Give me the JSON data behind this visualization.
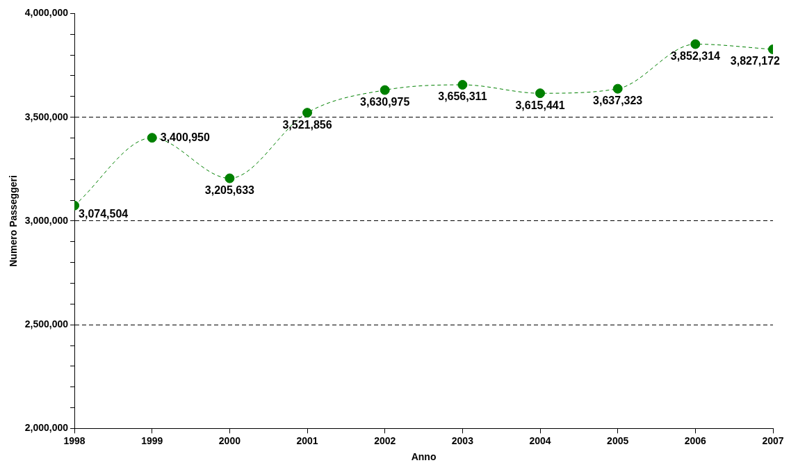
{
  "chart_data": {
    "type": "line",
    "xlabel": "Anno",
    "ylabel": "Numero Passeggeri",
    "x": [
      1998,
      1999,
      2000,
      2001,
      2002,
      2003,
      2004,
      2005,
      2006,
      2007
    ],
    "series": [
      {
        "color": "#008000",
        "values": [
          3074504,
          3400950,
          3205633,
          3521856,
          3630975,
          3656311,
          3615441,
          3637323,
          3852314,
          3827172
        ],
        "value_labels": [
          "3,074,504",
          "3,400,950",
          "3,205,633",
          "3,521,856",
          "3,630,975",
          "3,656,311",
          "3,615,441",
          "3,637,323",
          "3,852,314",
          "3,827,172"
        ]
      }
    ],
    "xlim": [
      1998,
      2007
    ],
    "xticks": [
      1998,
      1999,
      2000,
      2001,
      2002,
      2003,
      2004,
      2005,
      2006,
      2007
    ],
    "ylim": [
      2000000,
      4000000
    ],
    "yticks": [
      {
        "value": 2000000,
        "label": "2,000,000"
      },
      {
        "value": 2100000,
        "label": null
      },
      {
        "value": 2200000,
        "label": null
      },
      {
        "value": 2300000,
        "label": null
      },
      {
        "value": 2400000,
        "label": null
      },
      {
        "value": 2500000,
        "label": "2,500,000"
      },
      {
        "value": 2600000,
        "label": null
      },
      {
        "value": 2700000,
        "label": null
      },
      {
        "value": 2800000,
        "label": null
      },
      {
        "value": 2900000,
        "label": null
      },
      {
        "value": 3000000,
        "label": "3,000,000"
      },
      {
        "value": 3100000,
        "label": null
      },
      {
        "value": 3200000,
        "label": null
      },
      {
        "value": 3300000,
        "label": null
      },
      {
        "value": 3400000,
        "label": null
      },
      {
        "value": 3500000,
        "label": "3,500,000"
      },
      {
        "value": 3600000,
        "label": null
      },
      {
        "value": 3700000,
        "label": null
      },
      {
        "value": 3800000,
        "label": null
      },
      {
        "value": 3900000,
        "label": null
      },
      {
        "value": 4000000,
        "label": "4,000,000"
      }
    ],
    "grid": "y",
    "legend": false,
    "marker": "circle",
    "line_style": "dashed"
  }
}
